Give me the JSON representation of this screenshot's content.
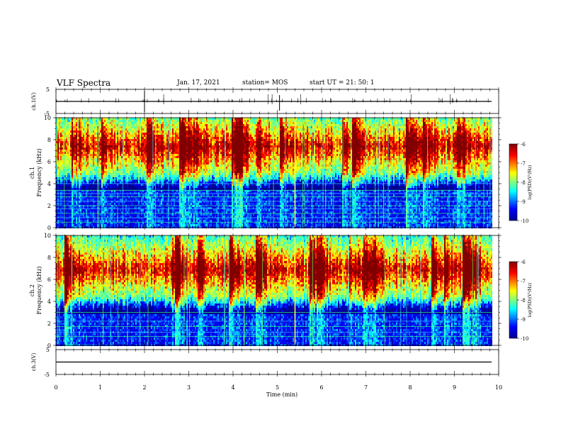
{
  "header": {
    "title": "VLF Spectra",
    "date": "Jan. 17, 2021",
    "station": "station= MOS",
    "start": "start  UT  =   21: 50: 1"
  },
  "chart_data": [
    {
      "type": "line",
      "name": "ch1-waveform",
      "ylabel": "ch.1(V)",
      "ylim": [
        -5,
        5
      ],
      "ytick_labels": [
        "5",
        "-5"
      ],
      "xlim": [
        0,
        10
      ],
      "approx_level": 0
    },
    {
      "type": "heatmap",
      "name": "ch1-spectrogram",
      "ylabel": "ch.1\nFrequency (kHz)",
      "ylim": [
        0,
        10
      ],
      "ytick_labels": [
        "0",
        "2",
        "4",
        "6",
        "8",
        "10"
      ],
      "xlim": [
        0,
        9.85
      ],
      "band_center_khz": 7.5,
      "band_lower_khz": 5.0,
      "noise_lines_khz": [
        0.5,
        0.9,
        1.3,
        1.7,
        2.0,
        2.4,
        2.8,
        3.1,
        3.4,
        4.0,
        4.4
      ],
      "colorbar": {
        "label": "log(PSD)(V²/Hz)",
        "ticks": [
          "-6",
          "-7",
          "-8",
          "-9",
          "-10"
        ],
        "range": [
          -10,
          -6
        ]
      }
    },
    {
      "type": "heatmap",
      "name": "ch2-spectrogram",
      "ylabel": "ch.2\nFrequency (kHz)",
      "ylim": [
        0,
        10
      ],
      "ytick_labels": [
        "0",
        "2",
        "4",
        "6",
        "8",
        "10"
      ],
      "xlim": [
        0,
        9.85
      ],
      "band_center_khz": 7.0,
      "band_lower_khz": 4.5,
      "noise_lines_khz": [
        0.8,
        1.2,
        1.7,
        2.2,
        3.0
      ],
      "colorbar": {
        "label": "log(PSD)(V²/Hz)",
        "ticks": [
          "-6",
          "-7",
          "-8",
          "-9",
          "-10"
        ],
        "range": [
          -10,
          -6
        ]
      }
    },
    {
      "type": "line",
      "name": "ch3-waveform",
      "ylabel": "ch.3(V)",
      "ylim": [
        -5,
        5
      ],
      "ytick_labels": [
        "5",
        "-5"
      ],
      "xlim": [
        0,
        10
      ],
      "approx_level": 0,
      "xlabel": "Time (min)",
      "xtick_labels": [
        "0",
        "1",
        "2",
        "3",
        "4",
        "5",
        "6",
        "7",
        "8",
        "9",
        "10"
      ]
    }
  ],
  "colors": {
    "jet_stops": [
      "#00008f",
      "#0000ff",
      "#00ffff",
      "#80ff80",
      "#ffff00",
      "#ff0000",
      "#800000"
    ],
    "axis": "#000000"
  }
}
